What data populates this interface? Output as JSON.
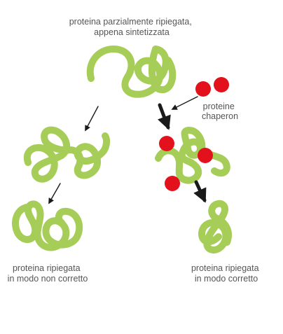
{
  "labels": {
    "top": [
      "proteina parzialmente ripiegata,",
      "appena sintetizzata"
    ],
    "chaperon": [
      "proteine",
      "chaperon"
    ],
    "incorrect": [
      "proteina ripiegata",
      "in modo non corretto"
    ],
    "correct": [
      "proteina ripiegata",
      "in modo corretto"
    ]
  },
  "colors": {
    "protein": "#a6cd57",
    "protein_shadow": "#8fb444",
    "chaperon": "#e3111b",
    "arrow": "#1a1a1a",
    "text": "#555555"
  }
}
